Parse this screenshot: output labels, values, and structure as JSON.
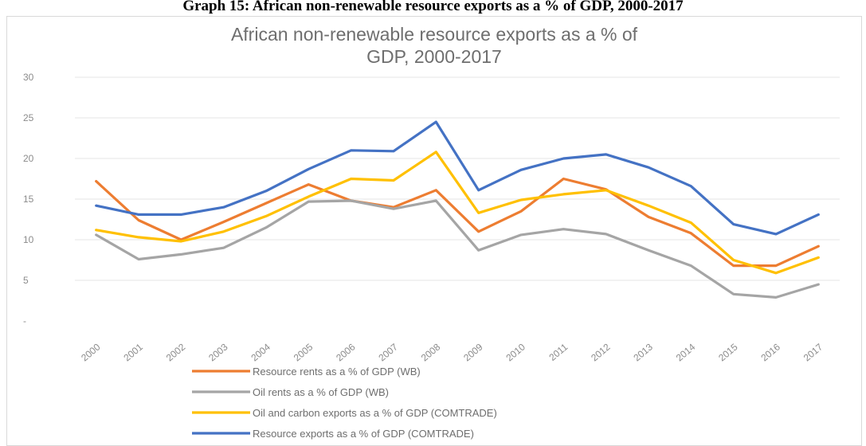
{
  "caption": "Graph 15: African non-renewable resource exports as a % of GDP, 2000-2017",
  "chart_data": {
    "type": "line",
    "title_lines": [
      "African non-renewable resource exports as a % of",
      "GDP, 2000-2017"
    ],
    "xlabel": "",
    "ylabel": "",
    "ylim": [
      0,
      30
    ],
    "yticks": [
      {
        "value": 30,
        "label": "30"
      },
      {
        "value": 25,
        "label": "25"
      },
      {
        "value": 20,
        "label": "20"
      },
      {
        "value": 15,
        "label": "15"
      },
      {
        "value": 10,
        "label": "10"
      },
      {
        "value": 5,
        "label": "5"
      },
      {
        "value": 0,
        "label": "-"
      }
    ],
    "grid": true,
    "legend_position": "bottom-left",
    "categories": [
      "2000",
      "2001",
      "2002",
      "2003",
      "2004",
      "2005",
      "2006",
      "2007",
      "2008",
      "2009",
      "2010",
      "2011",
      "2012",
      "2013",
      "2014",
      "2015",
      "2016",
      "2017"
    ],
    "series": [
      {
        "name": "Resource rents as a % of GDP (WB)",
        "color": "#ed7d31",
        "values": [
          17.2,
          12.4,
          10.0,
          12.2,
          14.5,
          16.8,
          14.8,
          14.0,
          16.1,
          11.0,
          13.5,
          17.5,
          16.2,
          12.8,
          10.8,
          6.8,
          6.8,
          9.2
        ]
      },
      {
        "name": "Oil rents as a % of GDP (WB)",
        "color": "#a5a5a5",
        "values": [
          10.6,
          7.6,
          8.2,
          9.0,
          11.5,
          14.7,
          14.8,
          13.8,
          14.8,
          8.7,
          10.6,
          11.3,
          10.7,
          8.7,
          6.8,
          3.3,
          2.9,
          4.5
        ]
      },
      {
        "name": "Oil and carbon exports as a % of GDP (COMTRADE)",
        "color": "#ffc000",
        "values": [
          11.2,
          10.3,
          9.8,
          11.0,
          12.9,
          15.3,
          17.5,
          17.3,
          20.8,
          13.3,
          14.9,
          15.6,
          16.1,
          14.2,
          12.1,
          7.5,
          5.9,
          7.8
        ]
      },
      {
        "name": "Resource exports as a % of GDP (COMTRADE)",
        "color": "#4472c4",
        "values": [
          14.2,
          13.1,
          13.1,
          14.0,
          16.0,
          18.7,
          21.0,
          20.9,
          24.5,
          16.1,
          18.6,
          20.0,
          20.5,
          18.9,
          16.6,
          11.9,
          10.7,
          13.1
        ]
      }
    ]
  }
}
